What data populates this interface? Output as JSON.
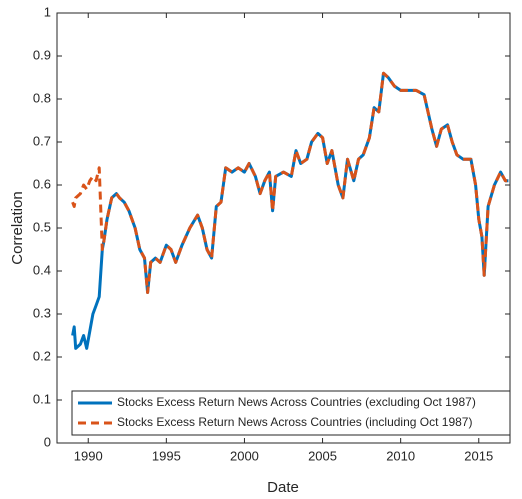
{
  "chart_data": {
    "type": "line",
    "x_label": "Date",
    "y_label": "Correlation",
    "x": [
      1989.0,
      1989.1,
      1989.2,
      1989.5,
      1989.7,
      1989.9,
      1990.1,
      1990.3,
      1990.5,
      1990.7,
      1990.9,
      1991.0,
      1991.2,
      1991.5,
      1991.8,
      1992.0,
      1992.3,
      1992.6,
      1993.0,
      1993.3,
      1993.6,
      1993.8,
      1994.0,
      1994.3,
      1994.6,
      1995.0,
      1995.3,
      1995.6,
      1996.0,
      1996.5,
      1997.0,
      1997.3,
      1997.6,
      1997.9,
      1998.2,
      1998.5,
      1998.8,
      1999.2,
      1999.6,
      2000.0,
      2000.3,
      2000.7,
      2001.0,
      2001.3,
      2001.6,
      2001.8,
      2002.0,
      2002.5,
      2003.0,
      2003.3,
      2003.6,
      2004.0,
      2004.3,
      2004.7,
      2005.0,
      2005.3,
      2005.6,
      2006.0,
      2006.3,
      2006.6,
      2007.0,
      2007.3,
      2007.6,
      2008.0,
      2008.3,
      2008.6,
      2008.9,
      2009.2,
      2009.6,
      2010.0,
      2010.5,
      2011.0,
      2011.5,
      2012.0,
      2012.3,
      2012.6,
      2013.0,
      2013.3,
      2013.6,
      2014.0,
      2014.5,
      2014.8,
      2015.0,
      2015.2,
      2015.35,
      2015.6,
      2016.0,
      2016.4,
      2016.7,
      2016.9
    ],
    "series": [
      {
        "name": "Stocks Excess Return News Across Countries (excluding Oct 1987)",
        "color": "#0072bd",
        "style": "solid",
        "values": [
          0.25,
          0.27,
          0.22,
          0.23,
          0.25,
          0.22,
          0.26,
          0.3,
          0.32,
          0.34,
          0.45,
          0.47,
          0.52,
          0.57,
          0.58,
          0.57,
          0.56,
          0.54,
          0.5,
          0.45,
          0.43,
          0.35,
          0.42,
          0.43,
          0.42,
          0.46,
          0.45,
          0.42,
          0.46,
          0.5,
          0.53,
          0.5,
          0.45,
          0.43,
          0.55,
          0.56,
          0.64,
          0.63,
          0.64,
          0.63,
          0.65,
          0.62,
          0.58,
          0.61,
          0.63,
          0.54,
          0.62,
          0.63,
          0.62,
          0.68,
          0.65,
          0.66,
          0.7,
          0.72,
          0.71,
          0.65,
          0.68,
          0.6,
          0.57,
          0.66,
          0.61,
          0.66,
          0.67,
          0.71,
          0.78,
          0.77,
          0.86,
          0.85,
          0.83,
          0.82,
          0.82,
          0.82,
          0.81,
          0.73,
          0.69,
          0.73,
          0.74,
          0.7,
          0.67,
          0.66,
          0.66,
          0.6,
          0.52,
          0.48,
          0.39,
          0.55,
          0.6,
          0.63,
          0.61,
          0.61
        ]
      },
      {
        "name": "Stocks Excess Return News Across Countries (including Oct 1987)",
        "color": "#d95319",
        "style": "dashed",
        "values": [
          0.56,
          0.55,
          0.57,
          0.58,
          0.6,
          0.59,
          0.61,
          0.62,
          0.61,
          0.64,
          0.45,
          0.47,
          0.52,
          0.57,
          0.58,
          0.57,
          0.56,
          0.54,
          0.5,
          0.45,
          0.43,
          0.35,
          0.42,
          0.43,
          0.42,
          0.46,
          0.45,
          0.42,
          0.46,
          0.5,
          0.53,
          0.5,
          0.45,
          0.43,
          0.55,
          0.56,
          0.64,
          0.63,
          0.64,
          0.63,
          0.65,
          0.62,
          0.58,
          0.61,
          0.63,
          0.54,
          0.62,
          0.63,
          0.62,
          0.68,
          0.65,
          0.66,
          0.7,
          0.72,
          0.71,
          0.65,
          0.68,
          0.6,
          0.57,
          0.66,
          0.61,
          0.66,
          0.67,
          0.71,
          0.78,
          0.77,
          0.86,
          0.85,
          0.83,
          0.82,
          0.82,
          0.82,
          0.81,
          0.73,
          0.69,
          0.73,
          0.74,
          0.7,
          0.67,
          0.66,
          0.66,
          0.6,
          0.52,
          0.48,
          0.39,
          0.55,
          0.6,
          0.63,
          0.61,
          0.61
        ]
      }
    ],
    "xlim": [
      1988,
      2017
    ],
    "xticks": [
      1990,
      1995,
      2000,
      2005,
      2010,
      2015
    ],
    "ylim": [
      0,
      1
    ],
    "yticks": [
      0,
      0.1,
      0.2,
      0.3,
      0.4,
      0.5,
      0.6,
      0.7,
      0.8,
      0.9,
      1
    ],
    "grid": false,
    "legend": "lower left"
  }
}
